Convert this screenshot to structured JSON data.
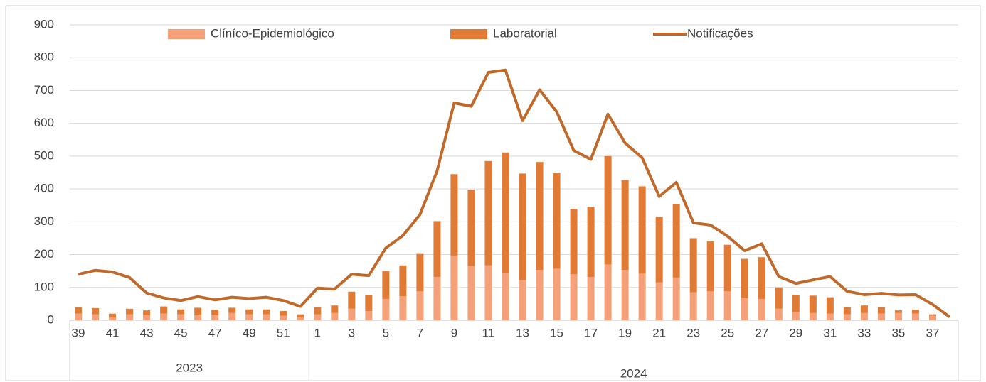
{
  "chart_data": {
    "type": "bar",
    "category_groups": [
      {
        "name": "2023",
        "categories": [
          39,
          null,
          41,
          null,
          43,
          null,
          45,
          null,
          47,
          null,
          49,
          null,
          51,
          null
        ]
      },
      {
        "name": "2024",
        "categories": [
          1,
          null,
          3,
          null,
          5,
          null,
          7,
          null,
          9,
          null,
          11,
          null,
          13,
          null,
          15,
          null,
          17,
          null,
          19,
          null,
          21,
          null,
          23,
          null,
          25,
          null,
          27,
          null,
          29,
          null,
          31,
          null,
          33,
          null,
          35,
          null,
          37,
          null
        ]
      }
    ],
    "series": [
      {
        "name": "Clíníco-Epidemiológico",
        "type": "bar",
        "stack": true,
        "color": "#f4a078",
        "values": [
          20,
          18,
          8,
          18,
          15,
          20,
          18,
          17,
          15,
          22,
          18,
          18,
          14,
          8,
          18,
          22,
          35,
          28,
          65,
          73,
          88,
          132,
          197,
          165,
          167,
          145,
          122,
          153,
          157,
          140,
          132,
          170,
          153,
          142,
          115,
          130,
          85,
          88,
          88,
          67,
          65,
          35,
          25,
          22,
          20,
          18,
          22,
          20,
          22,
          20,
          14,
          0
        ]
      },
      {
        "name": "Laboratorial",
        "type": "bar",
        "stack": true,
        "color": "#e07a34",
        "values": [
          20,
          19,
          12,
          17,
          15,
          22,
          15,
          21,
          17,
          16,
          15,
          15,
          14,
          10,
          22,
          23,
          52,
          49,
          85,
          94,
          114,
          170,
          248,
          233,
          318,
          366,
          325,
          329,
          291,
          199,
          213,
          330,
          274,
          266,
          200,
          223,
          165,
          152,
          142,
          120,
          127,
          65,
          52,
          53,
          50,
          22,
          23,
          20,
          8,
          12,
          4,
          0
        ]
      },
      {
        "name": "Notificações",
        "type": "line",
        "color": "#c0692b",
        "values": [
          140,
          152,
          147,
          130,
          83,
          68,
          60,
          72,
          62,
          70,
          66,
          70,
          60,
          42,
          98,
          95,
          140,
          136,
          220,
          258,
          322,
          455,
          662,
          652,
          755,
          762,
          608,
          702,
          635,
          517,
          490,
          628,
          540,
          495,
          377,
          420,
          297,
          290,
          256,
          212,
          233,
          133,
          112,
          123,
          133,
          88,
          78,
          82,
          77,
          78,
          48,
          10
        ]
      }
    ],
    "ylim": [
      0,
      900
    ],
    "yticks": [
      0,
      100,
      200,
      300,
      400,
      500,
      600,
      700,
      800,
      900
    ],
    "grid": true,
    "legend": "top"
  }
}
